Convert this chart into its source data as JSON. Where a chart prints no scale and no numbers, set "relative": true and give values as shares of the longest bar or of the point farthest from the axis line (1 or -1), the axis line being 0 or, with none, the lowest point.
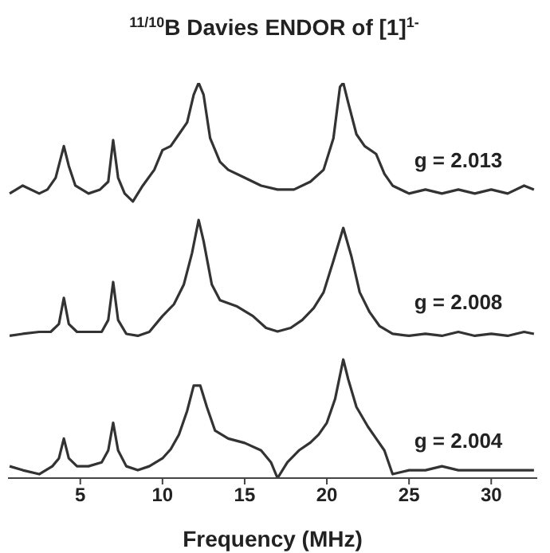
{
  "chart_data": {
    "type": "line",
    "title": "$^{11/10}$B Davies ENDOR of [1]$^{1-}$",
    "xlabel": "Frequency (MHz)",
    "relative": true,
    "xlim": [
      0.6,
      32.8
    ],
    "xticks": [
      5,
      10,
      15,
      20,
      25,
      30
    ],
    "legend": false,
    "grid": false,
    "series": [
      {
        "name": "g = 2.013",
        "color": "#333333",
        "x": [
          0.7,
          1.5,
          2.5,
          3.0,
          3.5,
          4.0,
          4.3,
          4.7,
          5.5,
          6.2,
          6.7,
          7.0,
          7.3,
          7.7,
          8.2,
          8.8,
          9.5,
          10.0,
          10.5,
          11.0,
          11.5,
          11.9,
          12.2,
          12.5,
          12.9,
          13.5,
          14.0,
          15.0,
          16.0,
          17.0,
          18.0,
          19.0,
          19.8,
          20.4,
          20.8,
          21.0,
          21.3,
          21.8,
          22.3,
          23.0,
          23.5,
          24.0,
          25.0,
          26.0,
          27.0,
          28.0,
          29.0,
          30.0,
          31.0,
          32.0,
          32.6
        ],
        "values": [
          0.72,
          0.74,
          0.72,
          0.73,
          0.76,
          0.84,
          0.79,
          0.74,
          0.72,
          0.73,
          0.75,
          0.855,
          0.76,
          0.72,
          0.7,
          0.74,
          0.78,
          0.83,
          0.84,
          0.87,
          0.9,
          0.97,
          1.0,
          0.97,
          0.86,
          0.8,
          0.78,
          0.76,
          0.74,
          0.73,
          0.73,
          0.75,
          0.78,
          0.86,
          0.99,
          1.0,
          0.95,
          0.87,
          0.84,
          0.82,
          0.77,
          0.74,
          0.72,
          0.73,
          0.72,
          0.73,
          0.72,
          0.73,
          0.72,
          0.74,
          0.73
        ]
      },
      {
        "name": "g = 2.008",
        "color": "#333333",
        "x": [
          0.7,
          1.5,
          2.5,
          3.2,
          3.7,
          4.0,
          4.3,
          4.8,
          5.5,
          6.3,
          6.7,
          7.0,
          7.3,
          7.8,
          8.5,
          9.2,
          10.0,
          10.7,
          11.3,
          11.8,
          12.2,
          12.5,
          13.0,
          13.5,
          14.5,
          15.5,
          16.3,
          17.0,
          17.8,
          18.5,
          19.2,
          19.8,
          20.4,
          21.0,
          21.5,
          22.0,
          22.6,
          23.2,
          24.0,
          25,
          26,
          27,
          28,
          29,
          30,
          31,
          32,
          32.6
        ],
        "values": [
          0.36,
          0.365,
          0.37,
          0.37,
          0.39,
          0.456,
          0.39,
          0.37,
          0.37,
          0.37,
          0.4,
          0.496,
          0.4,
          0.365,
          0.36,
          0.37,
          0.41,
          0.44,
          0.49,
          0.57,
          0.653,
          0.6,
          0.49,
          0.45,
          0.435,
          0.41,
          0.38,
          0.371,
          0.38,
          0.4,
          0.43,
          0.47,
          0.55,
          0.633,
          0.56,
          0.47,
          0.42,
          0.385,
          0.365,
          0.36,
          0.365,
          0.36,
          0.37,
          0.36,
          0.365,
          0.36,
          0.37,
          0.365
        ]
      },
      {
        "name": "g = 2.004",
        "color": "#333333",
        "x": [
          0.7,
          1.5,
          2.5,
          3.3,
          3.7,
          4.0,
          4.3,
          4.8,
          5.5,
          6.3,
          6.7,
          7.0,
          7.3,
          7.8,
          8.5,
          9.2,
          10.0,
          10.5,
          11.0,
          11.5,
          11.9,
          12.3,
          12.7,
          13.2,
          14.0,
          15.0,
          16.0,
          16.6,
          17.0,
          17.6,
          18.3,
          19.0,
          19.5,
          20.0,
          20.5,
          21.0,
          21.3,
          21.8,
          22.5,
          23.0,
          23.5,
          24.0,
          25,
          26,
          27,
          28,
          29,
          30,
          31,
          32,
          32.6
        ],
        "values": [
          0.03,
          0.02,
          0.01,
          0.03,
          0.05,
          0.1,
          0.05,
          0.03,
          0.03,
          0.04,
          0.07,
          0.14,
          0.07,
          0.03,
          0.02,
          0.03,
          0.05,
          0.073,
          0.11,
          0.17,
          0.234,
          0.234,
          0.18,
          0.12,
          0.1,
          0.089,
          0.07,
          0.04,
          0.0,
          0.04,
          0.07,
          0.09,
          0.11,
          0.14,
          0.2,
          0.3,
          0.25,
          0.18,
          0.13,
          0.1,
          0.07,
          0.01,
          0.02,
          0.02,
          0.03,
          0.02,
          0.02,
          0.02,
          0.02,
          0.02,
          0.02
        ]
      }
    ]
  }
}
